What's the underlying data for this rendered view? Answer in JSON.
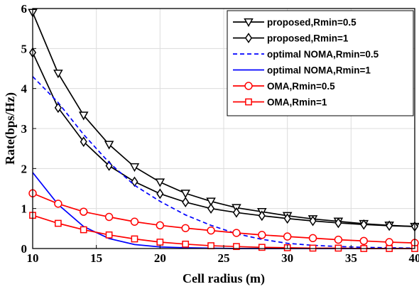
{
  "chart_data": {
    "type": "line",
    "title": "",
    "xlabel": "Cell radius (m)",
    "ylabel": "Rate(bps/Hz)",
    "xlim": [
      10,
      40
    ],
    "ylim": [
      0,
      6
    ],
    "xticks": [
      10,
      15,
      20,
      25,
      30,
      35,
      40
    ],
    "yticks": [
      0,
      1,
      2,
      3,
      4,
      5,
      6
    ],
    "grid": true,
    "legend_position": "top-right",
    "x": [
      10,
      12,
      14,
      16,
      18,
      20,
      22,
      24,
      26,
      28,
      30,
      32,
      34,
      36,
      38,
      40
    ],
    "series": [
      {
        "name": "proposed,Rmin=0.5",
        "color": "#000000",
        "line_style": "solid",
        "marker": "triangle-down",
        "values": [
          5.9,
          4.38,
          3.33,
          2.6,
          2.04,
          1.66,
          1.38,
          1.18,
          1.02,
          0.92,
          0.82,
          0.74,
          0.68,
          0.62,
          0.58,
          0.55
        ]
      },
      {
        "name": "proposed,Rmin=1",
        "color": "#000000",
        "line_style": "solid",
        "marker": "diamond",
        "values": [
          4.9,
          3.52,
          2.67,
          2.07,
          1.67,
          1.37,
          1.16,
          1.0,
          0.9,
          0.82,
          0.75,
          0.69,
          0.64,
          0.6,
          0.57,
          0.55
        ]
      },
      {
        "name": "optimal NOMA,Rmin=0.5",
        "color": "#0000ff",
        "line_style": "dashed",
        "marker": "none",
        "values": [
          4.3,
          3.65,
          2.85,
          2.15,
          1.58,
          1.18,
          0.84,
          0.58,
          0.37,
          0.23,
          0.13,
          0.08,
          0.05,
          0.03,
          0.02,
          0.01
        ]
      },
      {
        "name": "optimal NOMA,Rmin=1",
        "color": "#0000ff",
        "line_style": "solid",
        "marker": "none",
        "values": [
          1.9,
          1.1,
          0.55,
          0.25,
          0.1,
          0.04,
          0.02,
          0.01,
          0.0,
          0.0,
          0.0,
          0.0,
          0.0,
          0.0,
          0.0,
          0.0
        ]
      },
      {
        "name": "OMA,Rmin=0.5",
        "color": "#ff0000",
        "line_style": "solid",
        "marker": "circle",
        "values": [
          1.38,
          1.12,
          0.92,
          0.79,
          0.67,
          0.58,
          0.51,
          0.45,
          0.39,
          0.34,
          0.3,
          0.26,
          0.22,
          0.19,
          0.16,
          0.14
        ]
      },
      {
        "name": "OMA,Rmin=1",
        "color": "#ff0000",
        "line_style": "solid",
        "marker": "square",
        "values": [
          0.83,
          0.63,
          0.47,
          0.34,
          0.24,
          0.16,
          0.11,
          0.07,
          0.05,
          0.03,
          0.02,
          0.01,
          0.01,
          0.0,
          0.0,
          0.0
        ]
      }
    ]
  }
}
